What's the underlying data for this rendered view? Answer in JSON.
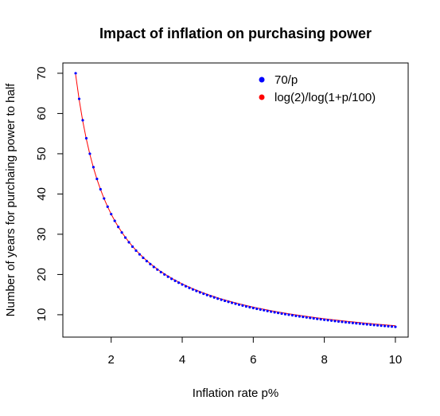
{
  "chart_data": {
    "type": "line",
    "title": "Impact of inflation on purchasing power",
    "xlabel": "Inflation rate p%",
    "ylabel": "Number of years for purchaing power to half",
    "xlim": [
      0.64,
      10.36
    ],
    "ylim": [
      4.44,
      72.56
    ],
    "xticks": [
      2,
      4,
      6,
      8,
      10
    ],
    "yticks": [
      10,
      20,
      30,
      40,
      50,
      60,
      70
    ],
    "x_domain": {
      "from": 1,
      "to": 10,
      "step": 0.1
    },
    "grid": false,
    "legend_position": "top-right",
    "series": [
      {
        "name": "70/p",
        "formula": "70/p",
        "style": "points",
        "color": "#0000ff"
      },
      {
        "name": "log(2)/log(1+p/100)",
        "formula": "log(2)/log(1+p/100)",
        "style": "line",
        "color": "#ff0000"
      }
    ]
  }
}
